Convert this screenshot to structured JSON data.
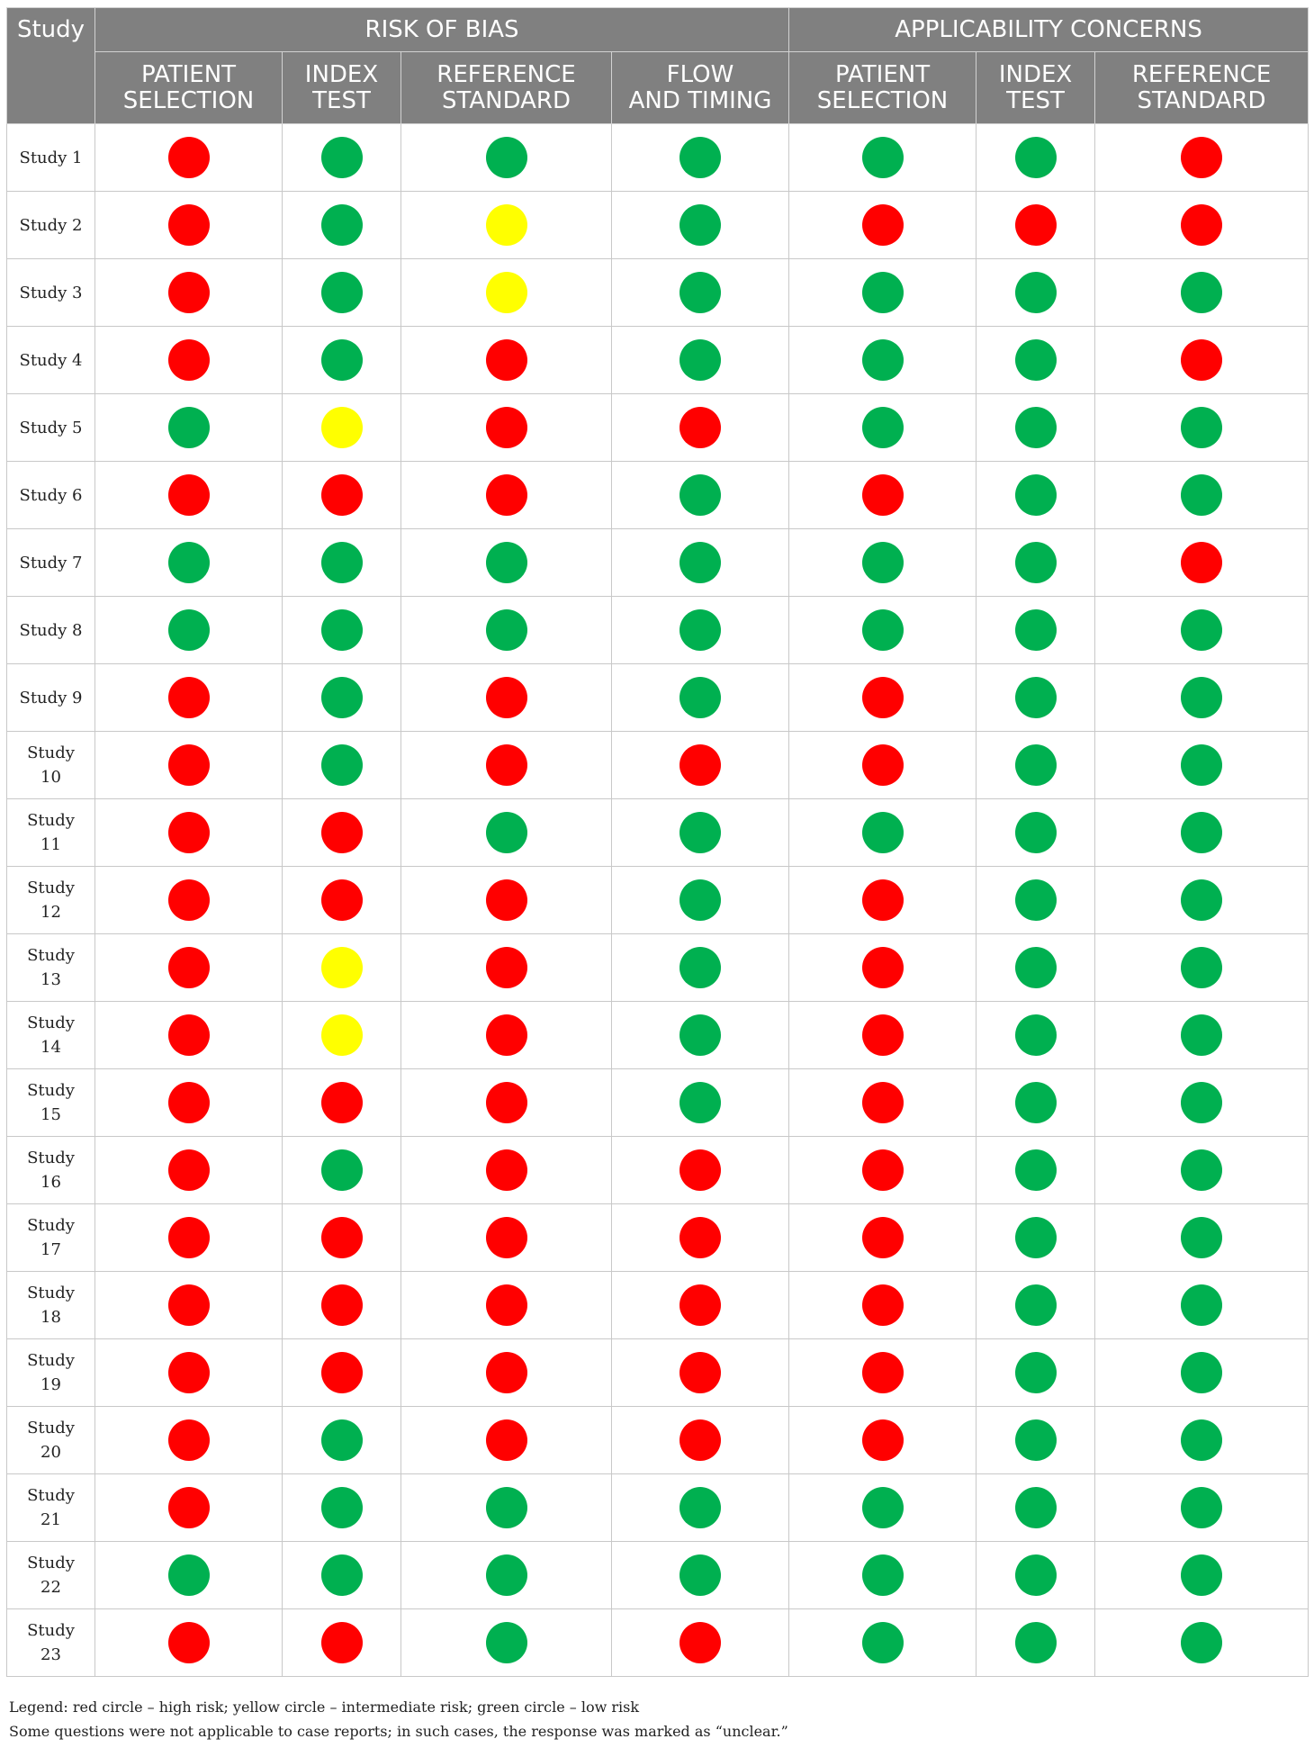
{
  "header": {
    "study": "Study",
    "groups": [
      "RISK OF BIAS",
      "APPLICABILITY CONCERNS"
    ],
    "columns": [
      [
        "PATIENT",
        "SELECTION"
      ],
      [
        "INDEX",
        "TEST"
      ],
      [
        "REFERENCE",
        "STANDARD"
      ],
      [
        "FLOW",
        "AND TIMING"
      ],
      [
        "PATIENT",
        "SELECTION"
      ],
      [
        "INDEX",
        "TEST"
      ],
      [
        "REFERENCE",
        "STANDARD"
      ]
    ]
  },
  "colors": {
    "high": "#ff0000",
    "intermediate": "#ffff00",
    "low": "#00b050",
    "header_bg": "#808080"
  },
  "rows": [
    {
      "study": [
        "Study 1"
      ],
      "ratings": [
        "high",
        "low",
        "low",
        "low",
        "low",
        "low",
        "high"
      ]
    },
    {
      "study": [
        "Study 2"
      ],
      "ratings": [
        "high",
        "low",
        "intermediate",
        "low",
        "high",
        "high",
        "high"
      ]
    },
    {
      "study": [
        "Study 3"
      ],
      "ratings": [
        "high",
        "low",
        "intermediate",
        "low",
        "low",
        "low",
        "low"
      ]
    },
    {
      "study": [
        "Study 4"
      ],
      "ratings": [
        "high",
        "low",
        "high",
        "low",
        "low",
        "low",
        "high"
      ]
    },
    {
      "study": [
        "Study 5"
      ],
      "ratings": [
        "low",
        "intermediate",
        "high",
        "high",
        "low",
        "low",
        "low"
      ]
    },
    {
      "study": [
        "Study 6"
      ],
      "ratings": [
        "high",
        "high",
        "high",
        "low",
        "high",
        "low",
        "low"
      ]
    },
    {
      "study": [
        "Study 7"
      ],
      "ratings": [
        "low",
        "low",
        "low",
        "low",
        "low",
        "low",
        "high"
      ]
    },
    {
      "study": [
        "Study 8"
      ],
      "ratings": [
        "low",
        "low",
        "low",
        "low",
        "low",
        "low",
        "low"
      ]
    },
    {
      "study": [
        "Study 9"
      ],
      "ratings": [
        "high",
        "low",
        "high",
        "low",
        "high",
        "low",
        "low"
      ]
    },
    {
      "study": [
        "Study",
        "10"
      ],
      "ratings": [
        "high",
        "low",
        "high",
        "high",
        "high",
        "low",
        "low"
      ]
    },
    {
      "study": [
        "Study",
        "11"
      ],
      "ratings": [
        "high",
        "high",
        "low",
        "low",
        "low",
        "low",
        "low"
      ]
    },
    {
      "study": [
        "Study",
        "12"
      ],
      "ratings": [
        "high",
        "high",
        "high",
        "low",
        "high",
        "low",
        "low"
      ]
    },
    {
      "study": [
        "Study",
        "13"
      ],
      "ratings": [
        "high",
        "intermediate",
        "high",
        "low",
        "high",
        "low",
        "low"
      ]
    },
    {
      "study": [
        "Study",
        "14"
      ],
      "ratings": [
        "high",
        "intermediate",
        "high",
        "low",
        "high",
        "low",
        "low"
      ]
    },
    {
      "study": [
        "Study",
        "15"
      ],
      "ratings": [
        "high",
        "high",
        "high",
        "low",
        "high",
        "low",
        "low"
      ]
    },
    {
      "study": [
        "Study",
        "16"
      ],
      "ratings": [
        "high",
        "low",
        "high",
        "high",
        "high",
        "low",
        "low"
      ]
    },
    {
      "study": [
        "Study",
        "17"
      ],
      "ratings": [
        "high",
        "high",
        "high",
        "high",
        "high",
        "low",
        "low"
      ]
    },
    {
      "study": [
        "Study",
        "18"
      ],
      "ratings": [
        "high",
        "high",
        "high",
        "high",
        "high",
        "low",
        "low"
      ]
    },
    {
      "study": [
        "Study",
        "19"
      ],
      "ratings": [
        "high",
        "high",
        "high",
        "high",
        "high",
        "low",
        "low"
      ]
    },
    {
      "study": [
        "Study",
        "20"
      ],
      "ratings": [
        "high",
        "low",
        "high",
        "high",
        "high",
        "low",
        "low"
      ]
    },
    {
      "study": [
        "Study",
        "21"
      ],
      "ratings": [
        "high",
        "low",
        "low",
        "low",
        "low",
        "low",
        "low"
      ]
    },
    {
      "study": [
        "Study",
        "22"
      ],
      "ratings": [
        "low",
        "low",
        "low",
        "low",
        "low",
        "low",
        "low"
      ]
    },
    {
      "study": [
        "Study",
        "23"
      ],
      "ratings": [
        "high",
        "high",
        "low",
        "high",
        "low",
        "low",
        "low"
      ]
    }
  ],
  "legend": [
    "Legend: red circle – high risk; yellow circle – intermediate risk; green circle – low risk",
    "Some questions were not applicable to case reports; in such cases, the response was marked as “unclear.”"
  ]
}
